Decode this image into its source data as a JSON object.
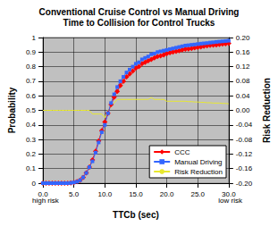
{
  "chart_data": {
    "type": "line",
    "title": "Conventional Cruise Control vs Manual Driving",
    "subtitle": "Time to Collision for Control Trucks",
    "x_label": "TTCb (sec)",
    "y_label": "Probability",
    "y2_label": "Risk Reduction",
    "annotations": [
      "high risk",
      "low risk"
    ],
    "x": [
      0,
      0.5,
      1,
      1.5,
      2,
      2.5,
      3,
      3.5,
      4,
      4.5,
      5,
      5.5,
      6,
      6.5,
      7,
      7.5,
      8,
      8.5,
      9,
      9.5,
      10,
      10.5,
      11,
      11.5,
      12,
      12.5,
      13,
      13.5,
      14,
      14.5,
      15,
      15.5,
      16,
      16.5,
      17,
      17.5,
      18,
      18.5,
      19,
      19.5,
      20,
      20.5,
      21,
      21.5,
      22,
      22.5,
      23,
      23.5,
      24,
      24.5,
      25,
      25.5,
      26,
      26.5,
      27,
      27.5,
      28,
      28.5,
      29,
      29.5,
      30
    ],
    "series": [
      {
        "name": "CCC",
        "color": "#ff0000",
        "marker": "diamond",
        "values": [
          0,
          0,
          0,
          0,
          0,
          0,
          0,
          0,
          0,
          0.002,
          0.005,
          0.01,
          0.02,
          0.04,
          0.07,
          0.11,
          0.16,
          0.22,
          0.29,
          0.36,
          0.42,
          0.48,
          0.54,
          0.59,
          0.63,
          0.67,
          0.7,
          0.73,
          0.75,
          0.77,
          0.79,
          0.8,
          0.82,
          0.83,
          0.84,
          0.85,
          0.86,
          0.87,
          0.875,
          0.88,
          0.89,
          0.895,
          0.9,
          0.905,
          0.91,
          0.915,
          0.92,
          0.922,
          0.925,
          0.93,
          0.933,
          0.936,
          0.94,
          0.943,
          0.946,
          0.948,
          0.95,
          0.953,
          0.955,
          0.957,
          0.96
        ]
      },
      {
        "name": "Manual Driving",
        "color": "#3366ff",
        "marker": "square",
        "values": [
          0,
          0,
          0,
          0,
          0,
          0,
          0,
          0,
          0,
          0.002,
          0.005,
          0.01,
          0.02,
          0.04,
          0.07,
          0.11,
          0.15,
          0.21,
          0.28,
          0.35,
          0.4,
          0.48,
          0.55,
          0.61,
          0.66,
          0.7,
          0.73,
          0.76,
          0.78,
          0.8,
          0.82,
          0.83,
          0.85,
          0.86,
          0.87,
          0.885,
          0.89,
          0.9,
          0.905,
          0.91,
          0.915,
          0.92,
          0.925,
          0.93,
          0.935,
          0.94,
          0.945,
          0.947,
          0.95,
          0.952,
          0.955,
          0.958,
          0.96,
          0.962,
          0.965,
          0.967,
          0.97,
          0.972,
          0.974,
          0.976,
          0.978
        ]
      },
      {
        "name": "Risk Reduction",
        "color": "#e8e830",
        "axis": "y2",
        "values": [
          0,
          0,
          0,
          0,
          0,
          0,
          0,
          0,
          0,
          0,
          0,
          0,
          0,
          0,
          0,
          0,
          -0.01,
          -0.01,
          -0.01,
          -0.01,
          -0.02,
          0,
          0.01,
          0.02,
          0.03,
          0.03,
          0.03,
          0.03,
          0.03,
          0.03,
          0.03,
          0.03,
          0.03,
          0.03,
          0.03,
          0.035,
          0.03,
          0.03,
          0.03,
          0.03,
          0.025,
          0.025,
          0.025,
          0.025,
          0.025,
          0.025,
          0.025,
          0.024,
          0.024,
          0.023,
          0.023,
          0.022,
          0.022,
          0.021,
          0.021,
          0.02,
          0.02,
          0.02,
          0.019,
          0.019,
          0.018
        ]
      }
    ],
    "xlim": [
      0,
      30
    ],
    "xticks": [
      {
        "value": 0,
        "label": "0.0"
      },
      {
        "value": 5,
        "label": "5.0"
      },
      {
        "value": 10,
        "label": "10.0"
      },
      {
        "value": 15,
        "label": "15.0"
      },
      {
        "value": 20,
        "label": "20.0"
      },
      {
        "value": 25,
        "label": "25.0"
      },
      {
        "value": 30,
        "label": "30.0"
      }
    ],
    "ylim": [
      0,
      1
    ],
    "yticks": [
      0,
      0.1,
      0.2,
      0.3,
      0.4,
      0.5,
      0.6,
      0.7,
      0.8,
      0.9,
      1
    ],
    "y2lim": [
      -0.2,
      0.2
    ],
    "y2ticks": [
      {
        "value": -0.2,
        "label": "-0.20"
      },
      {
        "value": -0.16,
        "label": "-0.16"
      },
      {
        "value": -0.12,
        "label": "-0.12"
      },
      {
        "value": -0.08,
        "label": "-0.08"
      },
      {
        "value": -0.04,
        "label": "-0.04"
      },
      {
        "value": 0,
        "label": "0.00"
      },
      {
        "value": 0.04,
        "label": "0.04"
      },
      {
        "value": 0.08,
        "label": "0.08"
      },
      {
        "value": 0.12,
        "label": "0.12"
      },
      {
        "value": 0.16,
        "label": "0.16"
      },
      {
        "value": 0.2,
        "label": "0.20"
      }
    ],
    "grid": true,
    "legend": "lower right"
  }
}
